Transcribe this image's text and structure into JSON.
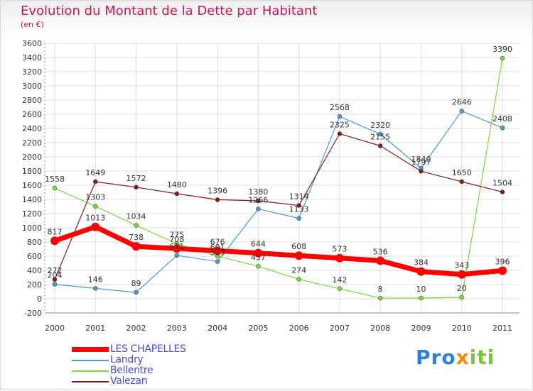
{
  "chart_data": {
    "type": "line",
    "title": "Evolution du Montant de la Dette par Habitant",
    "subtitle": "(en €)",
    "categories": [
      "2000",
      "2001",
      "2002",
      "2003",
      "2004",
      "2005",
      "2006",
      "2007",
      "2008",
      "2009",
      "2010",
      "2011"
    ],
    "ylim": [
      -200,
      3600
    ],
    "yticks": [
      -200,
      0,
      200,
      400,
      600,
      800,
      1000,
      1200,
      1400,
      1600,
      1800,
      2000,
      2200,
      2400,
      2600,
      2800,
      3000,
      3200,
      3400,
      3600
    ],
    "grid": true,
    "legend_position": "bottom-left",
    "series": [
      {
        "name": "LES CHAPELLES",
        "color": "#ff0000",
        "values": [
          817,
          1013,
          738,
          708,
          676,
          644,
          608,
          573,
          536,
          384,
          343,
          396
        ]
      },
      {
        "name": "Landry",
        "color": "#4f97d0",
        "values": [
          204,
          146,
          89,
          611,
          523,
          1266,
          1133,
          2568,
          2320,
          1840,
          2646,
          2408
        ]
      },
      {
        "name": "Bellentre",
        "color": "#7cd83a",
        "values": [
          1558,
          1303,
          1034,
          775,
          601,
          457,
          274,
          142,
          8,
          10,
          20,
          3390
        ]
      },
      {
        "name": "Valezan",
        "color": "#7a1e1e",
        "values": [
          272,
          1649,
          1572,
          1480,
          1396,
          1380,
          1314,
          2325,
          2155,
          1797,
          1650,
          1504
        ]
      }
    ]
  },
  "logo": {
    "part1": "Pro",
    "part2": "x",
    "part3": "iti"
  }
}
